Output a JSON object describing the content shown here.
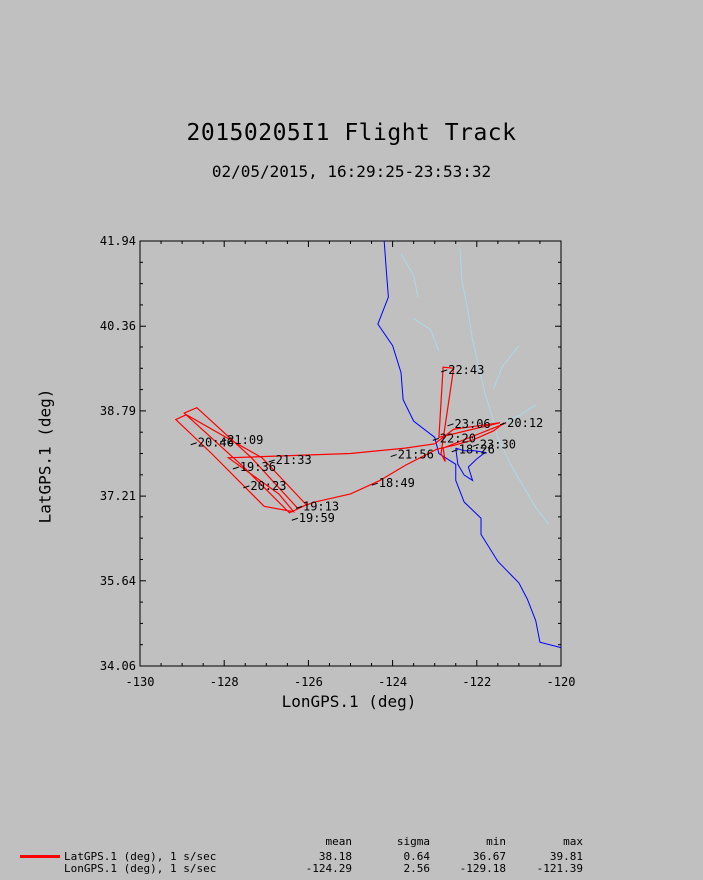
{
  "header": {
    "title": "20150205I1 Flight Track",
    "subtitle": "02/05/2015, 16:29:25-23:53:32"
  },
  "colors": {
    "background": "#c0c0c0",
    "track": "#ff0000",
    "coastline": "#0000ff",
    "rivers": "#add8e6"
  },
  "chart_data": {
    "type": "line",
    "title": "20150205I1 Flight Track",
    "subtitle": "02/05/2015, 16:29:25-23:53:32",
    "xlabel": "LonGPS.1 (deg)",
    "ylabel": "LatGPS.1 (deg)",
    "xlim": [
      -130,
      -120
    ],
    "ylim": [
      34.06,
      41.94
    ],
    "x_ticks": [
      "-130",
      "-128",
      "-126",
      "-124",
      "-122",
      "-120"
    ],
    "y_ticks": [
      "34.06",
      "35.64",
      "37.21",
      "38.79",
      "40.36",
      "41.94"
    ],
    "x_tick_values": [
      -130,
      -128,
      -126,
      -124,
      -122,
      -120
    ],
    "y_tick_values": [
      34.06,
      35.64,
      37.21,
      38.79,
      40.36,
      41.94
    ],
    "grid": false,
    "series": [
      {
        "name": "LatGPS.1 (deg), 1 s/sec",
        "points": [
          [
            -121.35,
            38.57
          ],
          [
            -121.6,
            38.42
          ],
          [
            -122.1,
            38.25
          ],
          [
            -122.55,
            38.15
          ],
          [
            -122.95,
            38.08
          ],
          [
            -123.7,
            37.78
          ],
          [
            -124.3,
            37.5
          ],
          [
            -125.0,
            37.25
          ],
          [
            -125.85,
            37.1
          ],
          [
            -126.1,
            37.03
          ],
          [
            -126.45,
            36.9
          ],
          [
            -127.5,
            37.72
          ],
          [
            -128.95,
            38.75
          ],
          [
            -128.65,
            38.85
          ],
          [
            -127.35,
            37.92
          ],
          [
            -126.25,
            36.98
          ],
          [
            -126.05,
            37.05
          ],
          [
            -127.1,
            37.92
          ],
          [
            -128.9,
            38.72
          ],
          [
            -129.15,
            38.63
          ],
          [
            -128.3,
            38.0
          ],
          [
            -127.05,
            37.02
          ],
          [
            -126.35,
            36.92
          ],
          [
            -126.7,
            37.25
          ],
          [
            -127.9,
            37.92
          ],
          [
            -125.0,
            38.0
          ],
          [
            -123.7,
            38.1
          ],
          [
            -123.0,
            38.18
          ],
          [
            -122.8,
            38.3
          ],
          [
            -122.55,
            38.45
          ],
          [
            -122.1,
            38.5
          ],
          [
            -121.45,
            38.57
          ],
          [
            -122.9,
            38.3
          ],
          [
            -122.8,
            39.6
          ],
          [
            -122.55,
            39.58
          ],
          [
            -122.85,
            38.0
          ],
          [
            -122.75,
            37.85
          ],
          [
            -122.8,
            38.1
          ],
          [
            -121.35,
            38.55
          ]
        ]
      }
    ],
    "time_labels": [
      {
        "text": "22:43",
        "lon": -122.75,
        "lat": 39.55
      },
      {
        "text": "23:06",
        "lon": -122.6,
        "lat": 38.55
      },
      {
        "text": "22:20",
        "lon": -122.95,
        "lat": 38.28
      },
      {
        "text": "23:30",
        "lon": -122.0,
        "lat": 38.17
      },
      {
        "text": "18:26",
        "lon": -122.5,
        "lat": 38.07
      },
      {
        "text": "20:12",
        "lon": -121.35,
        "lat": 38.57
      },
      {
        "text": "21:09",
        "lon": -128.0,
        "lat": 38.25
      },
      {
        "text": "20:46",
        "lon": -128.7,
        "lat": 38.2
      },
      {
        "text": "21:33",
        "lon": -126.85,
        "lat": 37.88
      },
      {
        "text": "21:56",
        "lon": -123.95,
        "lat": 37.98
      },
      {
        "text": "19:36",
        "lon": -127.7,
        "lat": 37.75
      },
      {
        "text": "20:23",
        "lon": -127.45,
        "lat": 37.4
      },
      {
        "text": "18:49",
        "lon": -124.4,
        "lat": 37.45
      },
      {
        "text": "19:13",
        "lon": -126.2,
        "lat": 37.02
      },
      {
        "text": "19:59",
        "lon": -126.3,
        "lat": 36.8
      }
    ]
  },
  "stats": {
    "headers": [
      "mean",
      "sigma",
      "min",
      "max"
    ],
    "rows": [
      {
        "label": "LatGPS.1 (deg), 1 s/sec",
        "mean": "38.18",
        "sigma": "0.64",
        "min": "36.67",
        "max": "39.81"
      },
      {
        "label": "LonGPS.1 (deg), 1 s/sec",
        "mean": "-124.29",
        "sigma": "2.56",
        "min": "-129.18",
        "max": "-121.39"
      }
    ]
  }
}
